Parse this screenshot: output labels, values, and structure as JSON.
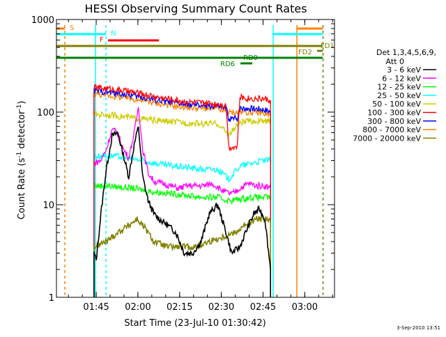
{
  "chart_data": {
    "type": "line",
    "title": "HESSI Observing Summary Count Rates",
    "xlabel": "Start Time (23-Jul-10 01:30:42)",
    "ylabel_main": "Count Rate (s",
    "ylabel_sup1": "-1",
    "ylabel_mid": " detector",
    "ylabel_sup2": "-1",
    "ylabel_end": ")",
    "y_scale": "log",
    "ylim": [
      1,
      1000
    ],
    "xlim_minutes_after_start": [
      0,
      100
    ],
    "x_ticks": [
      {
        "label": "01:45",
        "minute": 14.3
      },
      {
        "label": "02:00",
        "minute": 29.3
      },
      {
        "label": "02:15",
        "minute": 44.3
      },
      {
        "label": "02:30",
        "minute": 59.3
      },
      {
        "label": "02:45",
        "minute": 74.3
      },
      {
        "label": "03:00",
        "minute": 89.3
      }
    ],
    "y_ticks": [
      {
        "label": "1",
        "value": 1
      },
      {
        "label": "10",
        "value": 10
      },
      {
        "label": "100",
        "value": 100
      },
      {
        "label": "1000",
        "value": 1000
      }
    ],
    "legend": {
      "header1": "Det 1,3,4,5,6,9,",
      "header2": "Att 0",
      "placement": "right",
      "entries": [
        {
          "label": "3 - 6 keV",
          "color": "#000000"
        },
        {
          "label": "6 - 12 keV",
          "color": "#ff00ff"
        },
        {
          "label": "12 - 25 keV",
          "color": "#00ff00"
        },
        {
          "label": "25 - 50 keV",
          "color": "#00ffff"
        },
        {
          "label": "50 - 100 keV",
          "color": "#cccc00"
        },
        {
          "label": "100 - 300 keV",
          "color": "#ff0000"
        },
        {
          "label": "300 - 800 keV",
          "color": "#0000ff"
        },
        {
          "label": "800 - 7000 keV",
          "color": "#ff8000"
        },
        {
          "label": "7000 - 20000 keV",
          "color": "#808000"
        }
      ]
    },
    "series": [
      {
        "name": "3 - 6 keV",
        "color": "#000000",
        "x": [
          13.5,
          14.3,
          16,
          18,
          20,
          22,
          24,
          26,
          28,
          29.5,
          31,
          33,
          35,
          37,
          40,
          43,
          46,
          49,
          52,
          55,
          58,
          61,
          63,
          66,
          68,
          71,
          73,
          75,
          77
        ],
        "y": [
          3,
          2.5,
          8,
          25,
          55,
          60,
          35,
          20,
          45,
          70,
          20,
          11,
          8,
          7,
          6,
          5,
          3,
          3,
          4,
          8,
          10,
          5,
          3,
          3.5,
          5,
          8,
          9,
          7,
          2
        ]
      },
      {
        "name": "6 - 12 keV",
        "color": "#ff00ff",
        "x": [
          13.5,
          16,
          18,
          20,
          22,
          24,
          26,
          28,
          29.5,
          31,
          33,
          35,
          38,
          41,
          44,
          47,
          50,
          53,
          56,
          60,
          63,
          66,
          69,
          72,
          75,
          77
        ],
        "y": [
          28,
          30,
          40,
          65,
          60,
          40,
          32,
          60,
          115,
          40,
          22,
          18,
          17,
          16,
          15,
          16,
          16,
          16,
          17,
          14,
          13,
          15,
          17,
          16,
          16,
          15
        ]
      },
      {
        "name": "12 - 25 keV",
        "color": "#00ff00",
        "x": [
          13.5,
          18,
          23,
          28,
          33,
          38,
          43,
          48,
          53,
          58,
          62,
          66,
          70,
          74,
          77
        ],
        "y": [
          16,
          16,
          15.5,
          15,
          14,
          13.5,
          13,
          12.5,
          12,
          12,
          11,
          11.5,
          12,
          12,
          12
        ]
      },
      {
        "name": "25 - 50 keV",
        "color": "#00ffff",
        "x": [
          13.5,
          18,
          23,
          28,
          33,
          38,
          43,
          48,
          53,
          58,
          62,
          66,
          70,
          74,
          77
        ],
        "y": [
          33,
          34,
          33,
          31,
          29,
          27,
          26,
          25,
          24,
          24,
          19,
          26,
          28,
          30,
          30
        ]
      },
      {
        "name": "50 - 100 keV",
        "color": "#cccc00",
        "x": [
          13.5,
          18,
          23,
          28,
          33,
          38,
          43,
          48,
          53,
          58,
          62,
          66,
          70,
          74,
          77
        ],
        "y": [
          95,
          94,
          90,
          86,
          83,
          80,
          78,
          76,
          75,
          75,
          57,
          77,
          80,
          80,
          80
        ]
      },
      {
        "name": "100 - 300 keV",
        "color": "#ff0000",
        "x": [
          13.5,
          18,
          23,
          28,
          33,
          38,
          43,
          48,
          53,
          58,
          61,
          62,
          65,
          66,
          70,
          74,
          77
        ],
        "y": [
          185,
          180,
          172,
          163,
          152,
          142,
          135,
          128,
          125,
          123,
          118,
          42,
          42,
          145,
          140,
          140,
          135
        ]
      },
      {
        "name": "300 - 800 keV",
        "color": "#0000ff",
        "x": [
          13.5,
          18,
          23,
          28,
          33,
          38,
          43,
          48,
          53,
          58,
          61,
          62,
          65,
          66,
          70,
          74,
          77
        ],
        "y": [
          170,
          165,
          158,
          150,
          140,
          132,
          125,
          120,
          117,
          115,
          110,
          85,
          85,
          110,
          110,
          108,
          102
        ]
      },
      {
        "name": "800 - 7000 keV",
        "color": "#ff8000",
        "x": [
          13.5,
          18,
          23,
          28,
          33,
          38,
          43,
          48,
          53,
          58,
          62,
          66,
          70,
          74,
          77
        ],
        "y": [
          158,
          152,
          145,
          138,
          130,
          122,
          116,
          112,
          110,
          108,
          98,
          100,
          100,
          98,
          92
        ]
      },
      {
        "name": "7000 - 20000 keV",
        "color": "#808000",
        "x": [
          13.5,
          18,
          22,
          26,
          29,
          32,
          35,
          40,
          45,
          50,
          55,
          60,
          64,
          68,
          72,
          75,
          77
        ],
        "y": [
          3.5,
          4,
          5,
          6,
          7,
          5.5,
          4,
          3.5,
          3.5,
          3.5,
          4,
          4.5,
          5,
          6,
          7,
          7,
          6.5
        ]
      }
    ],
    "annotations": [
      {
        "label": "S",
        "color": "#ff8000"
      },
      {
        "label": "N",
        "color": "#00ffff"
      },
      {
        "label": "F",
        "color": "#ff0000"
      },
      {
        "label": "RD6",
        "color": "#008000"
      },
      {
        "label": "RD9",
        "color": "#008000"
      },
      {
        "label": "FD2",
        "color": "#808000"
      },
      {
        "label": "FD1",
        "color": "#808000"
      }
    ],
    "timestamp": "3-Sep-2010 13:51"
  }
}
